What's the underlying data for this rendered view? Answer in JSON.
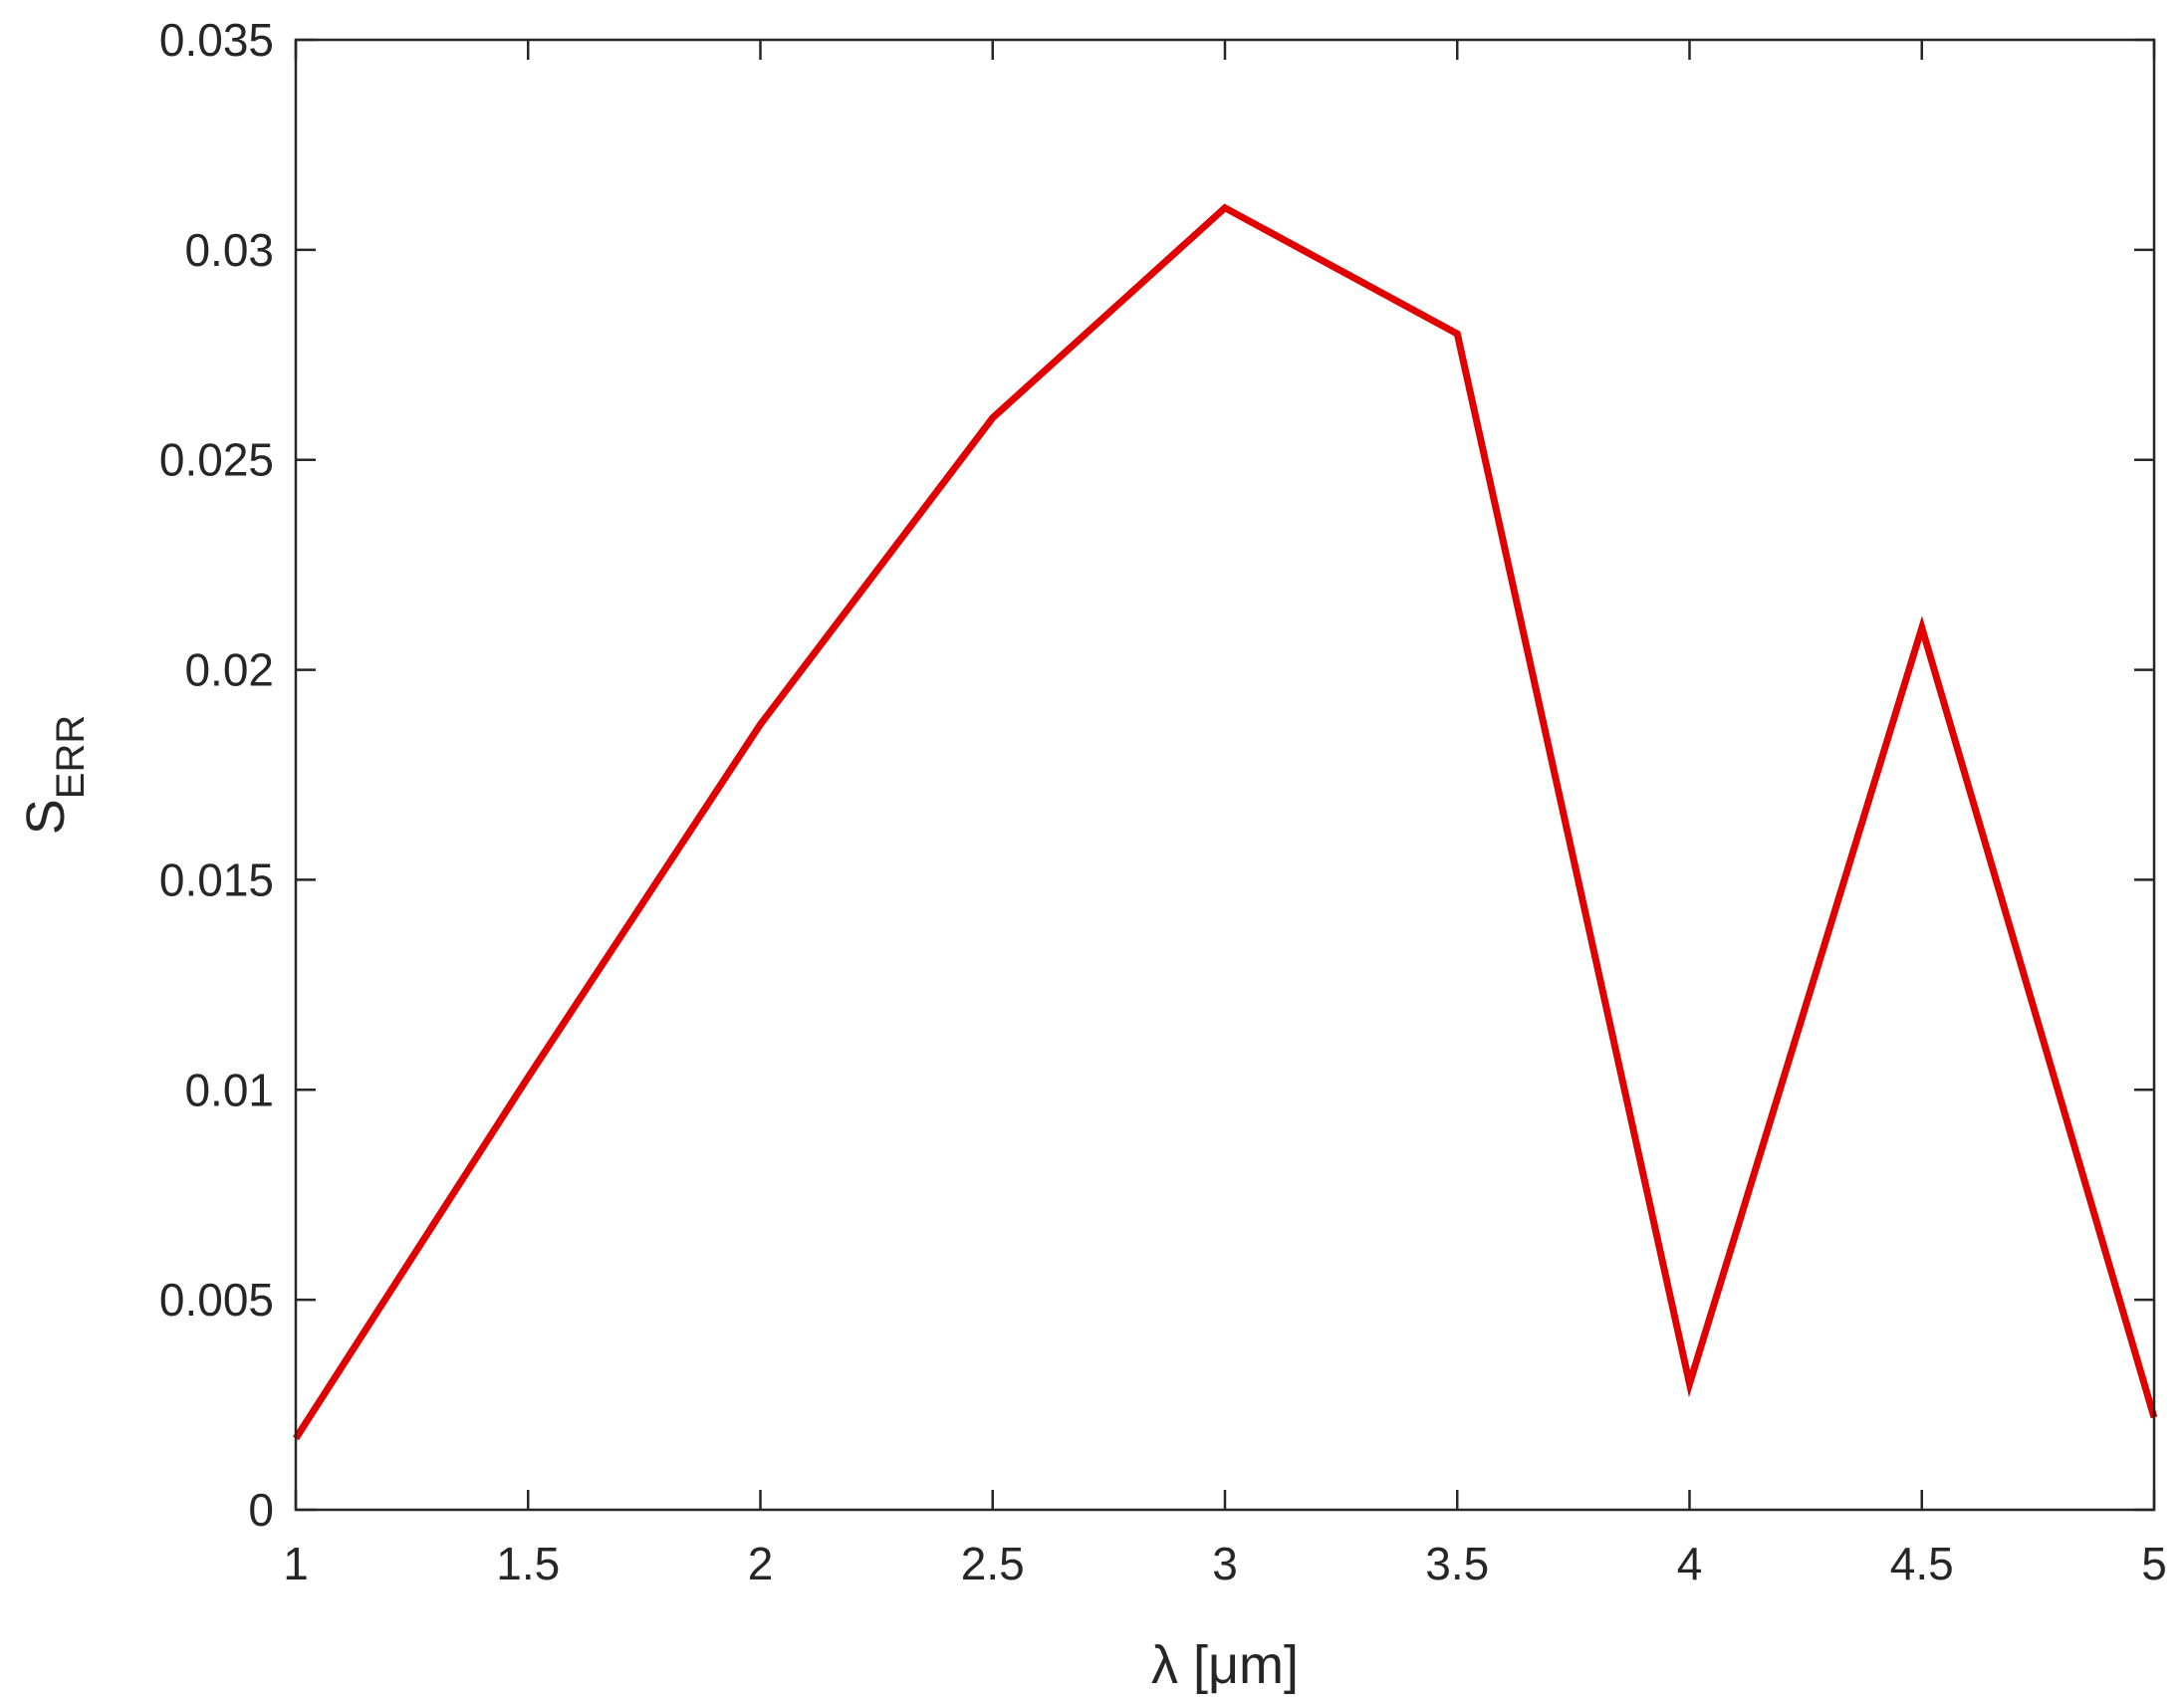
{
  "chart_data": {
    "type": "line",
    "title": "",
    "xlabel": "λ [μm]",
    "ylabel": {
      "main": "S",
      "subscript": "ERR"
    },
    "xlim": [
      1,
      5
    ],
    "ylim": [
      0,
      0.035
    ],
    "grid": false,
    "x_ticks": [
      1,
      1.5,
      2,
      2.5,
      3,
      3.5,
      4,
      4.5,
      5
    ],
    "x_tick_labels": [
      "1",
      "1.5",
      "2",
      "2.5",
      "3",
      "3.5",
      "4",
      "4.5",
      "5"
    ],
    "y_ticks": [
      0,
      0.005,
      0.01,
      0.015,
      0.02,
      0.025,
      0.03,
      0.035
    ],
    "y_tick_labels": [
      "0",
      "0.005",
      "0.01",
      "0.015",
      "0.02",
      "0.025",
      "0.03",
      "0.035"
    ],
    "series": [
      {
        "color": "#e00000",
        "x": [
          1,
          1.5,
          2,
          2.5,
          3,
          3.5,
          4,
          4.5,
          5
        ],
        "y": [
          0.0017,
          0.0103,
          0.0187,
          0.026,
          0.031,
          0.028,
          0.003,
          0.021,
          0.0022
        ]
      }
    ]
  }
}
